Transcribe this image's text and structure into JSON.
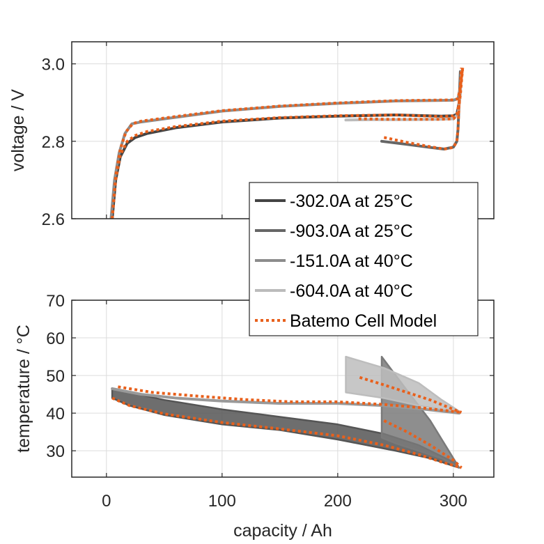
{
  "chart_data": [
    {
      "type": "line",
      "title": "",
      "xlabel": "",
      "ylabel": "voltage / V",
      "xlim": [
        -30,
        335
      ],
      "ylim": [
        2.6,
        3.057
      ],
      "xticks": [
        0,
        100,
        200,
        300
      ],
      "yticks": [
        2.6,
        2.8,
        3.0
      ],
      "ytick_labels": [
        "2.6",
        "2.8",
        "3.0"
      ],
      "grid": true,
      "legend_position": "bottom-right",
      "series": [
        {
          "name": "-302.0A at 25°C",
          "color": "#444444",
          "style": "solid",
          "x": [
            5,
            8,
            12,
            18,
            25,
            35,
            60,
            100,
            150,
            200,
            250,
            290,
            300,
            303,
            305,
            307
          ],
          "y": [
            2.6,
            2.7,
            2.76,
            2.795,
            2.81,
            2.82,
            2.835,
            2.85,
            2.86,
            2.865,
            2.868,
            2.865,
            2.866,
            2.87,
            2.9,
            2.98
          ]
        },
        {
          "name": "-903.0A at 25°C",
          "color": "#666666",
          "style": "solid",
          "x": [
            238,
            260,
            280,
            292,
            300,
            303,
            304,
            305,
            306
          ],
          "y": [
            2.8,
            2.792,
            2.784,
            2.78,
            2.785,
            2.8,
            2.83,
            2.9,
            2.98
          ]
        },
        {
          "name": "-151.0A at 40°C",
          "color": "#8c8c8c",
          "style": "solid",
          "x": [
            4,
            7,
            11,
            16,
            22,
            30,
            60,
            100,
            150,
            200,
            250,
            300,
            304,
            306,
            307
          ],
          "y": [
            2.6,
            2.7,
            2.77,
            2.82,
            2.845,
            2.85,
            2.862,
            2.878,
            2.89,
            2.898,
            2.904,
            2.906,
            2.91,
            2.94,
            2.98
          ]
        },
        {
          "name": "-604.0A at 40°C",
          "color": "#bbbbbb",
          "style": "solid",
          "x": [
            207,
            230,
            260,
            290,
            300,
            304,
            306,
            307
          ],
          "y": [
            2.855,
            2.856,
            2.856,
            2.857,
            2.858,
            2.87,
            2.92,
            2.98
          ]
        },
        {
          "name": "Batemo Cell Model",
          "color": "#e8601c",
          "style": "dotted",
          "segments": [
            {
              "x": [
                5,
                8,
                12,
                18,
                25,
                35,
                60,
                100,
                150,
                200,
                250,
                290,
                300,
                303,
                305,
                308
              ],
              "y": [
                2.6,
                2.7,
                2.765,
                2.8,
                2.815,
                2.825,
                2.838,
                2.852,
                2.861,
                2.866,
                2.868,
                2.864,
                2.866,
                2.87,
                2.9,
                2.99
              ]
            },
            {
              "x": [
                240,
                260,
                280,
                292,
                300,
                303,
                304,
                305,
                307
              ],
              "y": [
                2.81,
                2.797,
                2.786,
                2.78,
                2.784,
                2.8,
                2.83,
                2.9,
                2.99
              ]
            },
            {
              "x": [
                5,
                8,
                12,
                17,
                23,
                30,
                60,
                100,
                150,
                200,
                250,
                300,
                304,
                306,
                308
              ],
              "y": [
                2.6,
                2.71,
                2.78,
                2.825,
                2.846,
                2.852,
                2.864,
                2.879,
                2.891,
                2.899,
                2.905,
                2.907,
                2.91,
                2.94,
                2.99
              ]
            },
            {
              "x": [
                218,
                240,
                260,
                290,
                300,
                304,
                306,
                308
              ],
              "y": [
                2.858,
                2.857,
                2.857,
                2.857,
                2.858,
                2.87,
                2.92,
                2.99
              ]
            }
          ]
        }
      ]
    },
    {
      "type": "area",
      "title": "",
      "xlabel": "capacity / Ah",
      "ylabel": "temperature / °C",
      "xlim": [
        -30,
        335
      ],
      "ylim": [
        23,
        70
      ],
      "xticks": [
        0,
        100,
        200,
        300
      ],
      "xtick_labels": [
        "0",
        "100",
        "200",
        "300"
      ],
      "yticks": [
        30,
        40,
        50,
        60,
        70
      ],
      "ytick_labels": [
        "30",
        "40",
        "50",
        "60",
        "70"
      ],
      "grid": true,
      "series": [
        {
          "name": "-302.0A at 25°C",
          "color": "#555555",
          "style": "band",
          "upper": {
            "x": [
              5,
              50,
              100,
              150,
              200,
              240,
              270,
              300,
              305
            ],
            "y": [
              46.5,
              43.5,
              41,
              39,
              37,
              34.5,
              31.5,
              27,
              25.5
            ]
          },
          "lower": {
            "x": [
              5,
              20,
              50,
              100,
              150,
              200,
              250,
              280,
              305
            ],
            "y": [
              44,
              42,
              39.5,
              37,
              35.5,
              33,
              30,
              28,
              25.5
            ]
          }
        },
        {
          "name": "-903.0A at 25°C",
          "color": "#7a7a7a",
          "style": "band",
          "upper": {
            "x": [
              238,
              260,
              280,
              305
            ],
            "y": [
              55,
              46,
              38,
              25.5
            ]
          },
          "lower": {
            "x": [
              238,
              250,
              270,
              290,
              305
            ],
            "y": [
              33.5,
              32,
              30,
              28,
              25.5
            ]
          }
        },
        {
          "name": "-151.0A at 40°C",
          "color": "#999999",
          "style": "solid",
          "x": [
            5,
            30,
            60,
            100,
            150,
            200,
            240,
            270,
            305
          ],
          "y": [
            46.5,
            45,
            44,
            43.2,
            42.6,
            42.6,
            42,
            41.2,
            40
          ]
        },
        {
          "name": "-604.0A at 40°C",
          "color": "#bdbdbd",
          "style": "band",
          "upper": {
            "x": [
              207,
              240,
              270,
              290,
              305
            ],
            "y": [
              55,
              52,
              48,
              43.5,
              40.5
            ]
          },
          "lower": {
            "x": [
              207,
              240,
              270,
              290,
              305
            ],
            "y": [
              45.5,
              44,
              42,
              41,
              40
            ]
          }
        },
        {
          "name": "Batemo Cell Model",
          "color": "#e8601c",
          "style": "dotted",
          "segments": [
            {
              "x": [
                10,
                40,
                80,
                120,
                160,
                200,
                240,
                270,
                290,
                307
              ],
              "y": [
                47,
                45.5,
                44.5,
                43.6,
                43,
                43,
                42.3,
                41.5,
                40.8,
                40.2
              ]
            },
            {
              "x": [
                5,
                20,
                50,
                100,
                150,
                200,
                240,
                270,
                290,
                307
              ],
              "y": [
                44,
                42,
                39.8,
                37.5,
                35.8,
                34,
                31.5,
                29,
                27,
                25.5
              ]
            },
            {
              "x": [
                240,
                260,
                280,
                300,
                307
              ],
              "y": [
                38,
                35,
                31.5,
                27.5,
                25.5
              ]
            },
            {
              "x": [
                219,
                240,
                260,
                280,
                300,
                307
              ],
              "y": [
                49.5,
                47.5,
                45.5,
                43.5,
                41,
                40.2
              ]
            }
          ]
        }
      ]
    }
  ],
  "legend": {
    "entries": [
      {
        "label": "-302.0A at 25°C",
        "color": "#444444",
        "style": "solid"
      },
      {
        "label": "-903.0A at 25°C",
        "color": "#666666",
        "style": "solid"
      },
      {
        "label": "-151.0A at 40°C",
        "color": "#8c8c8c",
        "style": "solid"
      },
      {
        "label": "-604.0A at 40°C",
        "color": "#bbbbbb",
        "style": "solid"
      },
      {
        "label": "Batemo Cell Model",
        "color": "#e8601c",
        "style": "dotted"
      }
    ]
  }
}
